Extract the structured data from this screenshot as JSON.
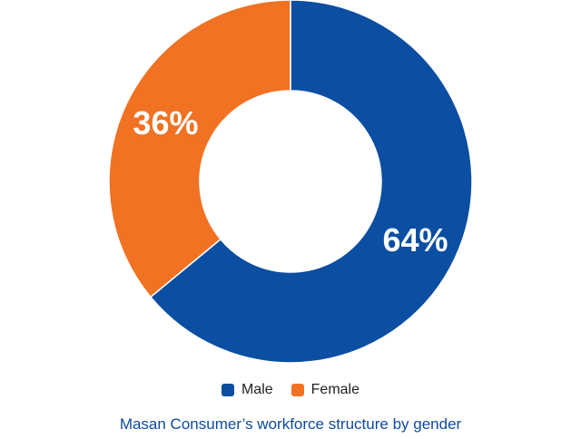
{
  "chart_data": {
    "type": "pie",
    "style": "donut",
    "categories": [
      "Male",
      "Female"
    ],
    "values": [
      64,
      36
    ],
    "value_labels": [
      "64%",
      "36%"
    ],
    "colors": [
      "#0b4ea2",
      "#f07222"
    ],
    "legend_position": "bottom",
    "title": "Masan Consumer’s workforce structure by gender"
  },
  "legend": {
    "items": [
      {
        "label": "Male",
        "color": "#0b4ea2"
      },
      {
        "label": "Female",
        "color": "#f07222"
      }
    ]
  },
  "caption": "Masan Consumer’s workforce structure by gender"
}
